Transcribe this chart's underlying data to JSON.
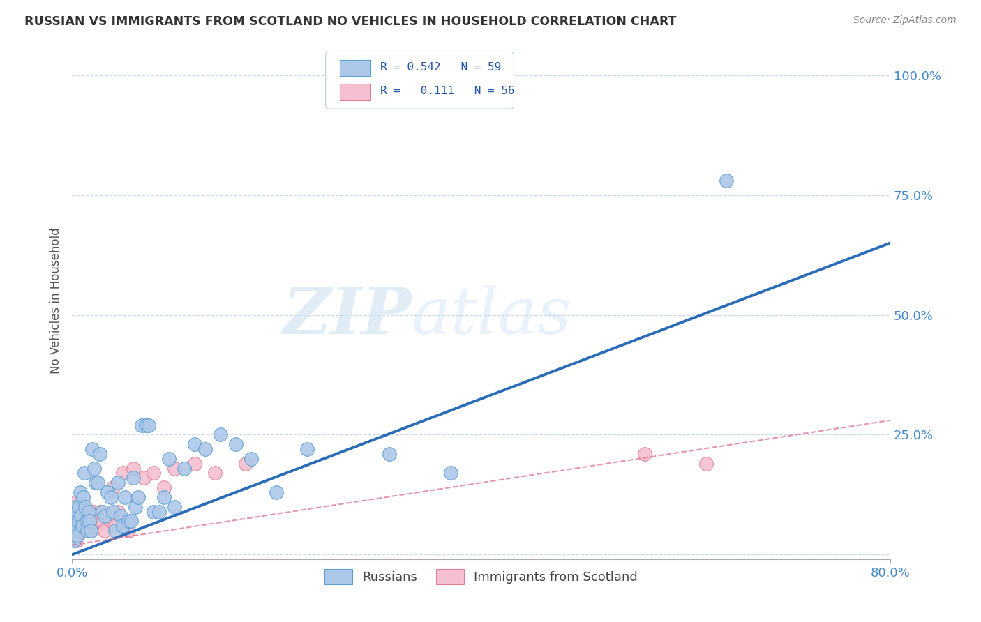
{
  "title": "RUSSIAN VS IMMIGRANTS FROM SCOTLAND NO VEHICLES IN HOUSEHOLD CORRELATION CHART",
  "source": "Source: ZipAtlas.com",
  "ylabel": "No Vehicles in Household",
  "xlim": [
    0.0,
    0.8
  ],
  "ylim": [
    -0.01,
    1.07
  ],
  "yticks": [
    0.0,
    0.25,
    0.5,
    0.75,
    1.0
  ],
  "yticklabels_right": [
    "",
    "25.0%",
    "50.0%",
    "75.0%",
    "100.0%"
  ],
  "xtick_left_label": "0.0%",
  "xtick_right_label": "80.0%",
  "blue_color": "#adc8e8",
  "blue_edge_color": "#5a9fd4",
  "blue_line_color": "#2b6cb8",
  "pink_color": "#f5c0d0",
  "pink_edge_color": "#e08098",
  "pink_line_color": "#e07090",
  "grid_color": "#c8d8e8",
  "legend_r_blue": "0.542",
  "legend_n_blue": "59",
  "legend_r_pink": "0.111",
  "legend_n_pink": "56",
  "blue_line_x0": 0.0,
  "blue_line_y0": 0.0,
  "blue_line_x1": 0.8,
  "blue_line_y1": 0.65,
  "pink_line_x0": 0.0,
  "pink_line_y0": 0.02,
  "pink_line_x1": 0.8,
  "pink_line_y1": 0.28,
  "blue_scatter_x": [
    0.001,
    0.002,
    0.003,
    0.003,
    0.004,
    0.005,
    0.005,
    0.006,
    0.007,
    0.008,
    0.009,
    0.01,
    0.011,
    0.012,
    0.013,
    0.014,
    0.015,
    0.016,
    0.017,
    0.018,
    0.02,
    0.022,
    0.023,
    0.025,
    0.027,
    0.03,
    0.032,
    0.035,
    0.038,
    0.04,
    0.042,
    0.045,
    0.048,
    0.05,
    0.052,
    0.055,
    0.058,
    0.06,
    0.062,
    0.065,
    0.068,
    0.072,
    0.075,
    0.08,
    0.085,
    0.09,
    0.095,
    0.1,
    0.11,
    0.12,
    0.13,
    0.145,
    0.16,
    0.175,
    0.2,
    0.23,
    0.31,
    0.37,
    0.64
  ],
  "blue_scatter_y": [
    0.05,
    0.03,
    0.07,
    0.1,
    0.06,
    0.04,
    0.09,
    0.07,
    0.1,
    0.13,
    0.08,
    0.06,
    0.12,
    0.17,
    0.1,
    0.07,
    0.05,
    0.09,
    0.07,
    0.05,
    0.22,
    0.18,
    0.15,
    0.15,
    0.21,
    0.09,
    0.08,
    0.13,
    0.12,
    0.09,
    0.05,
    0.15,
    0.08,
    0.06,
    0.12,
    0.07,
    0.07,
    0.16,
    0.1,
    0.12,
    0.27,
    0.27,
    0.27,
    0.09,
    0.09,
    0.12,
    0.2,
    0.1,
    0.18,
    0.23,
    0.22,
    0.25,
    0.23,
    0.2,
    0.13,
    0.22,
    0.21,
    0.17,
    0.78
  ],
  "pink_scatter_x": [
    0.001,
    0.001,
    0.002,
    0.002,
    0.002,
    0.003,
    0.003,
    0.003,
    0.004,
    0.004,
    0.005,
    0.005,
    0.005,
    0.006,
    0.006,
    0.007,
    0.007,
    0.008,
    0.008,
    0.009,
    0.01,
    0.01,
    0.011,
    0.012,
    0.013,
    0.014,
    0.015,
    0.016,
    0.017,
    0.018,
    0.019,
    0.02,
    0.021,
    0.022,
    0.024,
    0.025,
    0.027,
    0.03,
    0.032,
    0.035,
    0.038,
    0.04,
    0.042,
    0.045,
    0.05,
    0.055,
    0.06,
    0.07,
    0.08,
    0.09,
    0.1,
    0.12,
    0.14,
    0.17,
    0.56,
    0.62
  ],
  "pink_scatter_y": [
    0.04,
    0.06,
    0.05,
    0.08,
    0.1,
    0.04,
    0.07,
    0.09,
    0.06,
    0.11,
    0.04,
    0.07,
    0.03,
    0.08,
    0.05,
    0.06,
    0.09,
    0.05,
    0.07,
    0.06,
    0.08,
    0.1,
    0.07,
    0.06,
    0.09,
    0.05,
    0.07,
    0.06,
    0.08,
    0.05,
    0.07,
    0.06,
    0.09,
    0.07,
    0.08,
    0.06,
    0.09,
    0.07,
    0.05,
    0.08,
    0.07,
    0.14,
    0.06,
    0.09,
    0.17,
    0.05,
    0.18,
    0.16,
    0.17,
    0.14,
    0.18,
    0.19,
    0.17,
    0.19,
    0.21,
    0.19
  ],
  "background_color": "#ffffff"
}
